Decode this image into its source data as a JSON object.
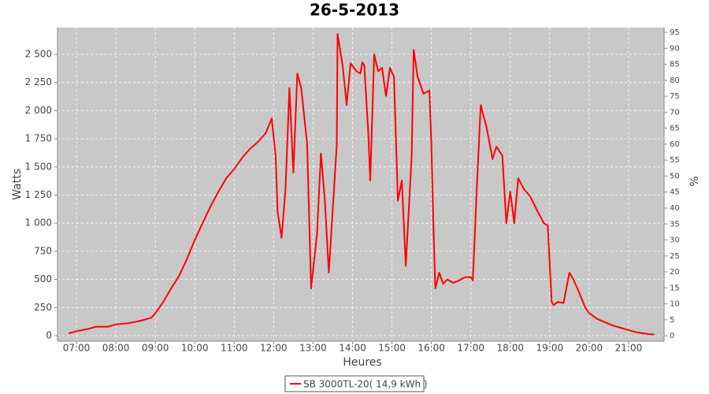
{
  "chart_data": {
    "type": "line",
    "title": "26-5-2013",
    "x_label": "Heures",
    "y_label": "Watts",
    "y2_label": "%",
    "x": [
      6.8,
      7.0,
      7.3,
      7.5,
      7.8,
      8.0,
      8.3,
      8.6,
      8.9,
      9.0,
      9.2,
      9.4,
      9.6,
      9.8,
      10.0,
      10.2,
      10.4,
      10.6,
      10.8,
      11.0,
      11.2,
      11.4,
      11.6,
      11.8,
      11.95,
      12.05,
      12.1,
      12.2,
      12.3,
      12.4,
      12.5,
      12.6,
      12.7,
      12.85,
      12.95,
      13.1,
      13.2,
      13.3,
      13.4,
      13.6,
      13.62,
      13.75,
      13.85,
      13.95,
      14.1,
      14.2,
      14.25,
      14.3,
      14.4,
      14.45,
      14.55,
      14.65,
      14.75,
      14.85,
      14.95,
      15.05,
      15.15,
      15.25,
      15.35,
      15.5,
      15.55,
      15.65,
      15.8,
      15.95,
      16.0,
      16.05,
      16.1,
      16.2,
      16.3,
      16.4,
      16.55,
      16.7,
      16.85,
      17.0,
      17.05,
      17.15,
      17.25,
      17.4,
      17.55,
      17.65,
      17.8,
      17.9,
      18.0,
      18.1,
      18.2,
      18.35,
      18.5,
      18.7,
      18.85,
      18.95,
      19.05,
      19.1,
      19.2,
      19.35,
      19.5,
      19.6,
      19.75,
      19.9,
      20.0,
      20.2,
      20.4,
      20.6,
      20.8,
      21.0,
      21.2,
      21.5,
      21.65
    ],
    "series": [
      {
        "name": "SB 3000TL-20( 14,9 kWh )",
        "color": "#ff0000",
        "values": [
          20,
          40,
          60,
          80,
          80,
          100,
          110,
          130,
          160,
          200,
          300,
          420,
          530,
          680,
          850,
          1000,
          1150,
          1280,
          1400,
          1480,
          1580,
          1660,
          1720,
          1800,
          1930,
          1600,
          1100,
          870,
          1300,
          2200,
          1450,
          2330,
          2200,
          1700,
          420,
          900,
          1620,
          1200,
          560,
          1700,
          2680,
          2400,
          2050,
          2420,
          2350,
          2330,
          2430,
          2400,
          1800,
          1380,
          2500,
          2350,
          2380,
          2130,
          2380,
          2300,
          1200,
          1380,
          620,
          1600,
          2540,
          2300,
          2150,
          2180,
          1700,
          1000,
          420,
          560,
          460,
          500,
          470,
          490,
          520,
          520,
          490,
          1300,
          2050,
          1850,
          1570,
          1680,
          1600,
          1000,
          1280,
          1000,
          1400,
          1300,
          1240,
          1100,
          1000,
          980,
          300,
          270,
          300,
          290,
          560,
          500,
          380,
          250,
          200,
          150,
          120,
          90,
          70,
          50,
          30,
          15,
          10
        ]
      }
    ],
    "xlim": [
      6.52,
      21.9
    ],
    "xticks": [
      {
        "value": 7,
        "label": "07:00"
      },
      {
        "value": 8,
        "label": "08:00"
      },
      {
        "value": 9,
        "label": "09:00"
      },
      {
        "value": 10,
        "label": "10:00"
      },
      {
        "value": 11,
        "label": "11:00"
      },
      {
        "value": 12,
        "label": "12:00"
      },
      {
        "value": 13,
        "label": "13:00"
      },
      {
        "value": 14,
        "label": "14:00"
      },
      {
        "value": 15,
        "label": "15:00"
      },
      {
        "value": 16,
        "label": "16:00"
      },
      {
        "value": 17,
        "label": "17:00"
      },
      {
        "value": 18,
        "label": "18:00"
      },
      {
        "value": 19,
        "label": "19:00"
      },
      {
        "value": 20,
        "label": "20:00"
      },
      {
        "value": 21,
        "label": "21:00"
      }
    ],
    "ylim": [
      -49,
      2738
    ],
    "yticks": [
      0,
      250,
      500,
      750,
      {
        "value": 1000,
        "label": "1 000"
      },
      {
        "value": 1250,
        "label": "1 250"
      },
      {
        "value": 1500,
        "label": "1 500"
      },
      {
        "value": 1750,
        "label": "1 750"
      },
      {
        "value": 2000,
        "label": "2 000"
      },
      {
        "value": 2250,
        "label": "2 250"
      },
      {
        "value": 2500,
        "label": "2 500"
      }
    ],
    "y2lim": [
      -1.7,
      96.5
    ],
    "y2ticks": [
      0,
      5,
      10,
      15,
      20,
      25,
      30,
      35,
      40,
      45,
      50,
      55,
      60,
      65,
      70,
      75,
      80,
      85,
      90,
      95
    ],
    "grid": true
  }
}
